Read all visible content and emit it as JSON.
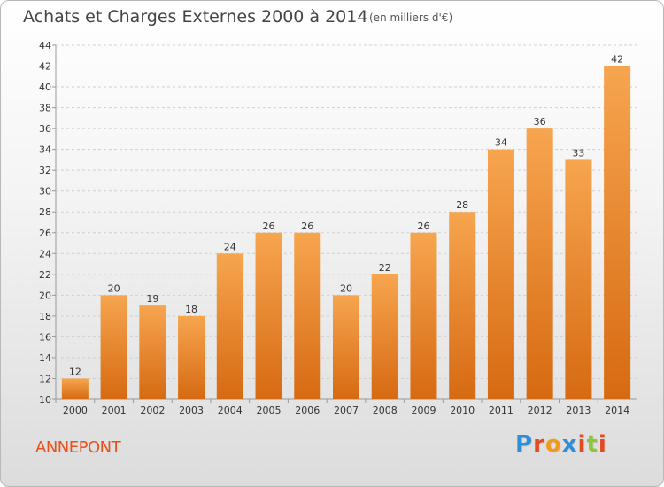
{
  "title": "Achats et Charges Externes 2000 à 2014",
  "subtitle": "(en milliers d'€)",
  "city": "ANNEPONT",
  "logo": {
    "letters": [
      "P",
      "r",
      "o",
      "x",
      "i",
      "t",
      "i"
    ],
    "colors": [
      "#2f8fd6",
      "#e34b1f",
      "#f29a1c",
      "#2f8fd6",
      "#e34b1f",
      "#8cc63f",
      "#e34b1f"
    ]
  },
  "colors": {
    "bar_light": "#f7a54f",
    "bar_dark": "#d66a12"
  },
  "chart_data": {
    "type": "bar",
    "title": "Achats et Charges Externes 2000 à 2014",
    "xlabel": "",
    "ylabel": "",
    "categories": [
      "2000",
      "2001",
      "2002",
      "2003",
      "2004",
      "2005",
      "2006",
      "2007",
      "2008",
      "2009",
      "2010",
      "2011",
      "2012",
      "2013",
      "2014"
    ],
    "values": [
      12,
      20,
      19,
      18,
      24,
      26,
      26,
      20,
      22,
      26,
      28,
      34,
      36,
      33,
      42
    ],
    "ylim": [
      10,
      44
    ],
    "yticks": [
      10,
      12,
      14,
      16,
      18,
      20,
      22,
      24,
      26,
      28,
      30,
      32,
      34,
      36,
      38,
      40,
      42,
      44
    ],
    "grid": true
  }
}
